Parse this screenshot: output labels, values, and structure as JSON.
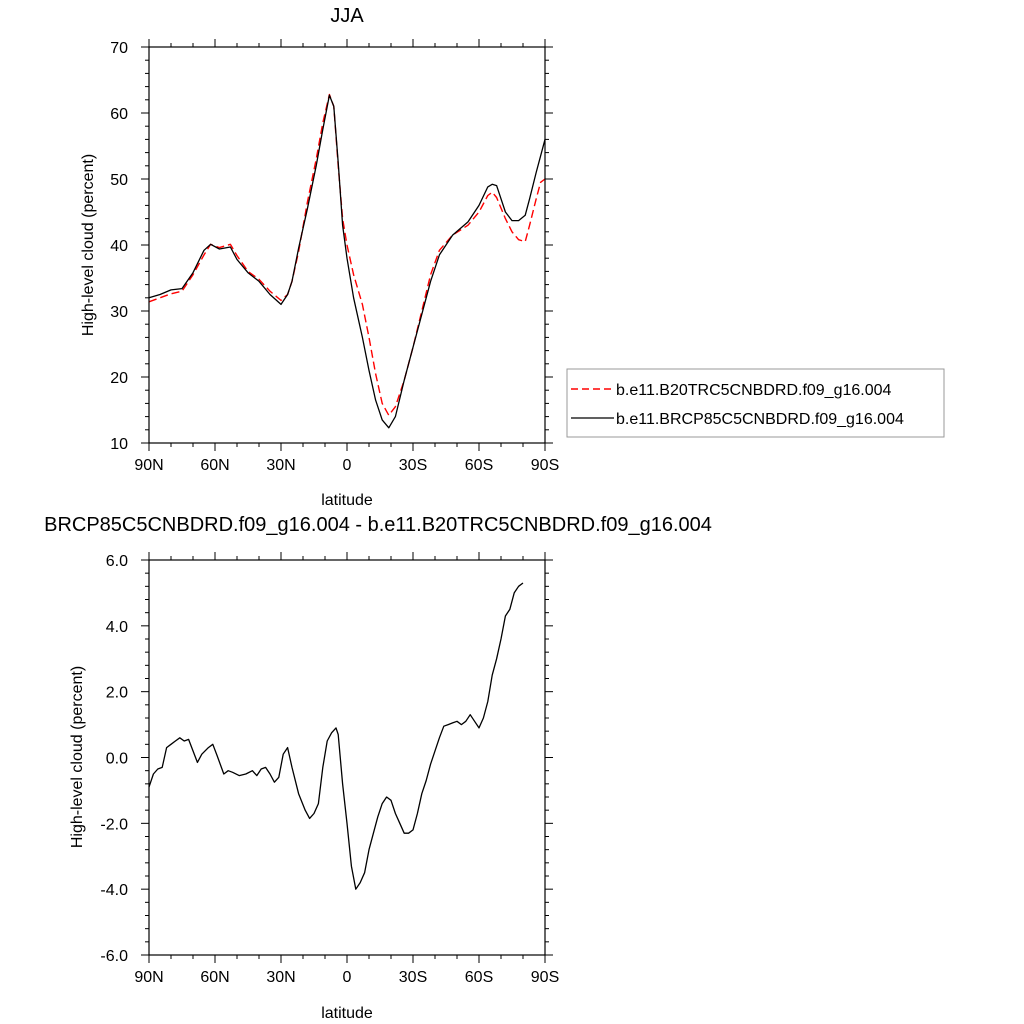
{
  "chart_data": [
    {
      "type": "line",
      "title": "JJA",
      "xlabel": "latitude",
      "ylabel": "High-level cloud (percent)",
      "xlim": [
        -90,
        90
      ],
      "ylim": [
        10,
        70
      ],
      "x_ticks": [
        {
          "value": -90,
          "label": "90N"
        },
        {
          "value": -60,
          "label": "60N"
        },
        {
          "value": -30,
          "label": "30N"
        },
        {
          "value": 0,
          "label": "0"
        },
        {
          "value": 30,
          "label": "30S"
        },
        {
          "value": 60,
          "label": "60S"
        },
        {
          "value": 90,
          "label": "90S"
        }
      ],
      "y_ticks": [
        {
          "value": 10,
          "label": "10"
        },
        {
          "value": 20,
          "label": "20"
        },
        {
          "value": 30,
          "label": "30"
        },
        {
          "value": 40,
          "label": "40"
        },
        {
          "value": 50,
          "label": "50"
        },
        {
          "value": 60,
          "label": "60"
        },
        {
          "value": 70,
          "label": "70"
        }
      ],
      "grid": false,
      "legend_position": "right",
      "series": [
        {
          "name": "b.e11.B20TRC5CNBDRD.f09_g16.004",
          "color": "#ff0000",
          "style": "dashed",
          "points": [
            [
              -90,
              31.4
            ],
            [
              -85,
              32.0
            ],
            [
              -80,
              32.6
            ],
            [
              -75,
              33.0
            ],
            [
              -70,
              35.5
            ],
            [
              -65,
              38.5
            ],
            [
              -62,
              40.1
            ],
            [
              -58,
              39.6
            ],
            [
              -53,
              40.1
            ],
            [
              -50,
              38.4
            ],
            [
              -45,
              36.0
            ],
            [
              -40,
              34.8
            ],
            [
              -35,
              33.0
            ],
            [
              -30,
              31.6
            ],
            [
              -27,
              32.5
            ],
            [
              -25,
              34.5
            ],
            [
              -22,
              39.0
            ],
            [
              -18,
              46.5
            ],
            [
              -14,
              53.0
            ],
            [
              -11,
              58.5
            ],
            [
              -8,
              62.8
            ],
            [
              -6,
              61.0
            ],
            [
              -4,
              52.0
            ],
            [
              -2,
              44.0
            ],
            [
              0,
              40.0
            ],
            [
              3,
              35.5
            ],
            [
              7,
              31.0
            ],
            [
              10,
              26.0
            ],
            [
              13,
              20.5
            ],
            [
              16,
              16.0
            ],
            [
              19,
              14.2
            ],
            [
              22,
              15.5
            ],
            [
              26,
              19.5
            ],
            [
              30,
              24.5
            ],
            [
              34,
              30.0
            ],
            [
              38,
              35.5
            ],
            [
              42,
              39.2
            ],
            [
              48,
              41.5
            ],
            [
              55,
              43.0
            ],
            [
              60,
              45.0
            ],
            [
              64,
              47.5
            ],
            [
              66,
              48.0
            ],
            [
              68,
              47.2
            ],
            [
              72,
              44.0
            ],
            [
              75,
              42.0
            ],
            [
              78,
              40.8
            ],
            [
              81,
              40.5
            ],
            [
              83,
              43.0
            ],
            [
              86,
              47.0
            ],
            [
              88,
              49.5
            ],
            [
              90,
              50.0
            ]
          ]
        },
        {
          "name": "b.e11.BRCP85C5CNBDRD.f09_g16.004",
          "color": "#000000",
          "style": "solid",
          "points": [
            [
              -90,
              32.0
            ],
            [
              -85,
              32.5
            ],
            [
              -80,
              33.2
            ],
            [
              -75,
              33.4
            ],
            [
              -70,
              35.8
            ],
            [
              -65,
              39.2
            ],
            [
              -62,
              40.1
            ],
            [
              -58,
              39.4
            ],
            [
              -53,
              39.7
            ],
            [
              -50,
              37.8
            ],
            [
              -45,
              35.8
            ],
            [
              -40,
              34.5
            ],
            [
              -35,
              32.5
            ],
            [
              -30,
              31.0
            ],
            [
              -27,
              32.5
            ],
            [
              -25,
              34.5
            ],
            [
              -22,
              39.5
            ],
            [
              -18,
              45.5
            ],
            [
              -14,
              52.0
            ],
            [
              -11,
              57.5
            ],
            [
              -8,
              62.7
            ],
            [
              -6,
              61.0
            ],
            [
              -4,
              52.5
            ],
            [
              -2,
              43.0
            ],
            [
              0,
              38.0
            ],
            [
              3,
              32.0
            ],
            [
              7,
              26.0
            ],
            [
              10,
              21.0
            ],
            [
              13,
              16.5
            ],
            [
              16,
              13.5
            ],
            [
              19,
              12.3
            ],
            [
              22,
              14.0
            ],
            [
              26,
              19.5
            ],
            [
              30,
              24.5
            ],
            [
              34,
              29.5
            ],
            [
              38,
              34.5
            ],
            [
              42,
              38.5
            ],
            [
              48,
              41.5
            ],
            [
              55,
              43.5
            ],
            [
              60,
              46.0
            ],
            [
              64,
              48.8
            ],
            [
              66,
              49.2
            ],
            [
              68,
              49.0
            ],
            [
              72,
              45.0
            ],
            [
              75,
              43.7
            ],
            [
              78,
              43.7
            ],
            [
              81,
              44.5
            ],
            [
              83,
              47.0
            ],
            [
              86,
              51.0
            ],
            [
              88,
              53.5
            ],
            [
              90,
              56.0
            ]
          ]
        }
      ]
    },
    {
      "type": "line",
      "title": "BRCP85C5CNBDRD.f09_g16.004 - b.e11.B20TRC5CNBDRD.f09_g16.004",
      "xlabel": "latitude",
      "ylabel": "High-level cloud (percent)",
      "xlim": [
        -90,
        90
      ],
      "ylim": [
        -6,
        6
      ],
      "x_ticks": [
        {
          "value": -90,
          "label": "90N"
        },
        {
          "value": -60,
          "label": "60N"
        },
        {
          "value": -30,
          "label": "30N"
        },
        {
          "value": 0,
          "label": "0"
        },
        {
          "value": 30,
          "label": "30S"
        },
        {
          "value": 60,
          "label": "60S"
        },
        {
          "value": 90,
          "label": "90S"
        }
      ],
      "y_ticks": [
        {
          "value": -6,
          "label": "-6.0"
        },
        {
          "value": -4,
          "label": "-4.0"
        },
        {
          "value": -2,
          "label": "-2.0"
        },
        {
          "value": 0,
          "label": "0.0"
        },
        {
          "value": 2,
          "label": "2.0"
        },
        {
          "value": 4,
          "label": "4.0"
        },
        {
          "value": 6,
          "label": "6.0"
        }
      ],
      "grid": false,
      "series": [
        {
          "color": "#000000",
          "style": "solid",
          "points": [
            [
              -90,
              -0.9
            ],
            [
              -88,
              -0.5
            ],
            [
              -86,
              -0.35
            ],
            [
              -84,
              -0.3
            ],
            [
              -82,
              0.3
            ],
            [
              -80,
              0.4
            ],
            [
              -78,
              0.5
            ],
            [
              -76,
              0.6
            ],
            [
              -74,
              0.5
            ],
            [
              -72,
              0.55
            ],
            [
              -70,
              0.2
            ],
            [
              -68,
              -0.15
            ],
            [
              -66,
              0.1
            ],
            [
              -63,
              0.3
            ],
            [
              -61,
              0.4
            ],
            [
              -59,
              0.05
            ],
            [
              -56,
              -0.5
            ],
            [
              -54,
              -0.4
            ],
            [
              -52,
              -0.45
            ],
            [
              -49,
              -0.55
            ],
            [
              -46,
              -0.5
            ],
            [
              -43,
              -0.4
            ],
            [
              -41,
              -0.55
            ],
            [
              -39,
              -0.35
            ],
            [
              -37,
              -0.3
            ],
            [
              -35,
              -0.5
            ],
            [
              -33,
              -0.75
            ],
            [
              -31,
              -0.6
            ],
            [
              -29,
              0.1
            ],
            [
              -27,
              0.3
            ],
            [
              -25,
              -0.3
            ],
            [
              -22,
              -1.1
            ],
            [
              -19,
              -1.6
            ],
            [
              -17,
              -1.85
            ],
            [
              -15,
              -1.7
            ],
            [
              -13,
              -1.4
            ],
            [
              -11,
              -0.3
            ],
            [
              -9,
              0.5
            ],
            [
              -7,
              0.75
            ],
            [
              -5,
              0.9
            ],
            [
              -4,
              0.7
            ],
            [
              -2,
              -0.8
            ],
            [
              0,
              -2.0
            ],
            [
              2,
              -3.3
            ],
            [
              4,
              -4.0
            ],
            [
              6,
              -3.8
            ],
            [
              8,
              -3.5
            ],
            [
              10,
              -2.8
            ],
            [
              12,
              -2.3
            ],
            [
              14,
              -1.8
            ],
            [
              16,
              -1.4
            ],
            [
              18,
              -1.2
            ],
            [
              20,
              -1.3
            ],
            [
              22,
              -1.7
            ],
            [
              24,
              -2.0
            ],
            [
              26,
              -2.3
            ],
            [
              28,
              -2.3
            ],
            [
              30,
              -2.2
            ],
            [
              32,
              -1.7
            ],
            [
              34,
              -1.1
            ],
            [
              36,
              -0.7
            ],
            [
              38,
              -0.2
            ],
            [
              40,
              0.2
            ],
            [
              42,
              0.6
            ],
            [
              44,
              0.95
            ],
            [
              46,
              1.0
            ],
            [
              48,
              1.05
            ],
            [
              50,
              1.1
            ],
            [
              52,
              1.0
            ],
            [
              54,
              1.1
            ],
            [
              56,
              1.3
            ],
            [
              58,
              1.1
            ],
            [
              60,
              0.9
            ],
            [
              62,
              1.2
            ],
            [
              64,
              1.7
            ],
            [
              66,
              2.5
            ],
            [
              68,
              3.0
            ],
            [
              70,
              3.6
            ],
            [
              72,
              4.3
            ],
            [
              74,
              4.5
            ],
            [
              76,
              5.0
            ],
            [
              78,
              5.2
            ],
            [
              80,
              5.3
            ]
          ]
        }
      ]
    }
  ]
}
